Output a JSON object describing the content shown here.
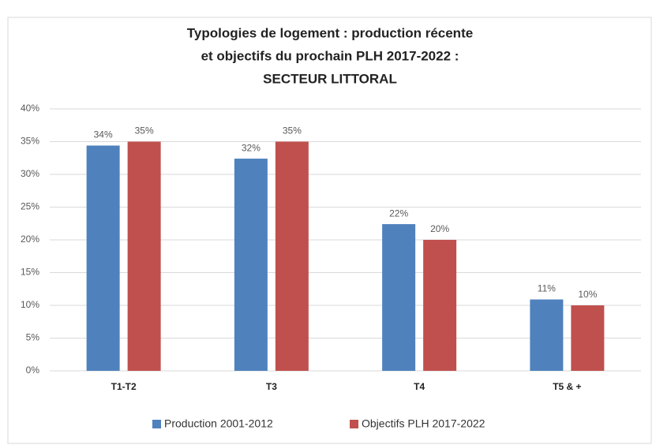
{
  "chart_data": {
    "type": "bar",
    "title": [
      "Typologies de logement : production récente",
      "et objectifs du prochain PLH 2017-2022 :",
      "SECTEUR LITTORAL"
    ],
    "categories": [
      "T1-T2",
      "T3",
      "T4",
      "T5 & +"
    ],
    "series": [
      {
        "name": "Production 2001-2012",
        "color": "#4f81bd",
        "values": [
          34.4,
          32.4,
          22.4,
          10.9
        ],
        "value_labels": [
          "34%",
          "32%",
          "22%",
          "11%"
        ]
      },
      {
        "name": "Objectifs PLH 2017-2022",
        "color": "#c0504d",
        "values": [
          35,
          35,
          20,
          10
        ],
        "value_labels": [
          "35%",
          "35%",
          "20%",
          "10%"
        ]
      }
    ],
    "ylim": [
      0,
      40
    ],
    "yticks": [
      {
        "value": 0,
        "label": "0%"
      },
      {
        "value": 5,
        "label": "5%"
      },
      {
        "value": 10,
        "label": "10%"
      },
      {
        "value": 15,
        "label": "15%"
      },
      {
        "value": 20,
        "label": "20%"
      },
      {
        "value": 25,
        "label": "25%"
      },
      {
        "value": 30,
        "label": "30%"
      },
      {
        "value": 35,
        "label": "35%"
      },
      {
        "value": 40,
        "label": "40%"
      }
    ],
    "grid": true,
    "legend": "bottom"
  }
}
